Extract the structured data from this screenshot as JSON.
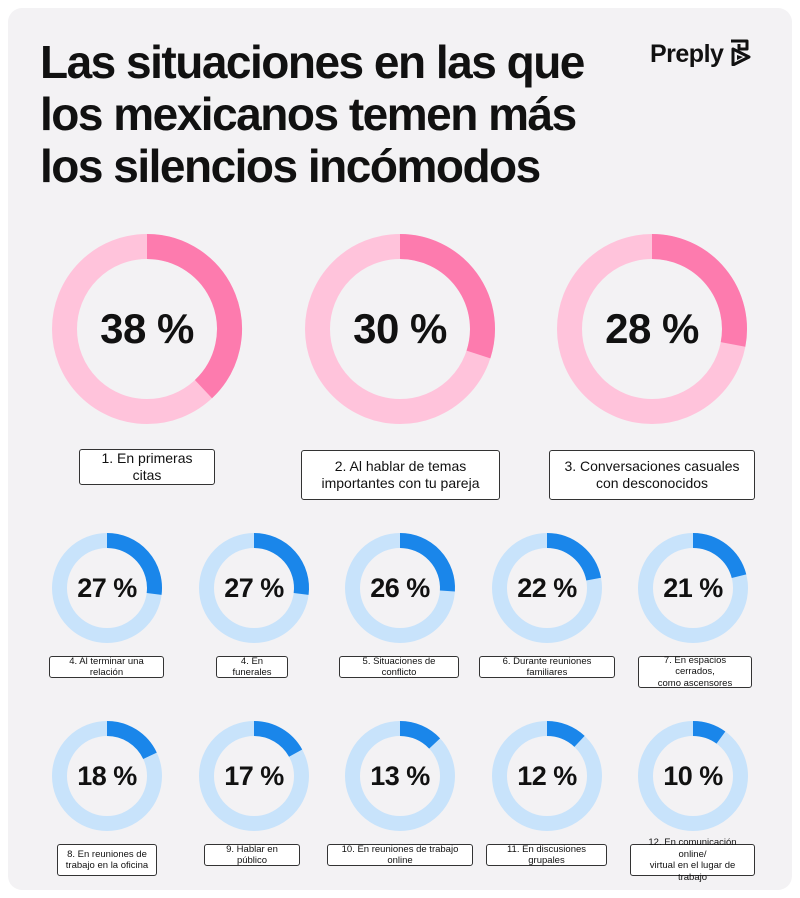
{
  "title": "Las situaciones en las que\nlos mexicanos temen más\nlos silencios incómodos",
  "brand": "Preply",
  "colors": {
    "top_track": "#ffc3db",
    "top_fill": "#fd7bae",
    "bottom_track": "#c8e3fb",
    "bottom_fill": "#1a86ea"
  },
  "chart_data": {
    "type": "donut",
    "unit": "%",
    "items": [
      {
        "label": "1. En primeras citas",
        "value": 38,
        "display": "38 %"
      },
      {
        "label": "2. Al hablar de temas\nimportantes con tu pareja",
        "value": 30,
        "display": "30 %"
      },
      {
        "label": "3. Conversaciones casuales\ncon desconocidos",
        "value": 28,
        "display": "28 %"
      },
      {
        "label": "4. Al terminar una relación",
        "value": 27,
        "display": "27 %"
      },
      {
        "label": "4. En funerales",
        "value": 27,
        "display": "27 %"
      },
      {
        "label": "5. Situaciones de conflicto",
        "value": 26,
        "display": "26 %"
      },
      {
        "label": "6. Durante reuniones familiares",
        "value": 22,
        "display": "22 %"
      },
      {
        "label": "7. En espacios cerrados,\ncomo ascensores",
        "value": 21,
        "display": "21 %"
      },
      {
        "label": "8. En reuniones de\ntrabajo en la oficina",
        "value": 18,
        "display": "18 %"
      },
      {
        "label": "9. Hablar en público",
        "value": 17,
        "display": "17 %"
      },
      {
        "label": "10. En reuniones de trabajo online",
        "value": 13,
        "display": "13 %"
      },
      {
        "label": "11. En discusiones grupales",
        "value": 12,
        "display": "12 %"
      },
      {
        "label": "12. En comunicación online/\nvirtual en el lugar de trabajo",
        "value": 10,
        "display": "10 %"
      }
    ]
  }
}
